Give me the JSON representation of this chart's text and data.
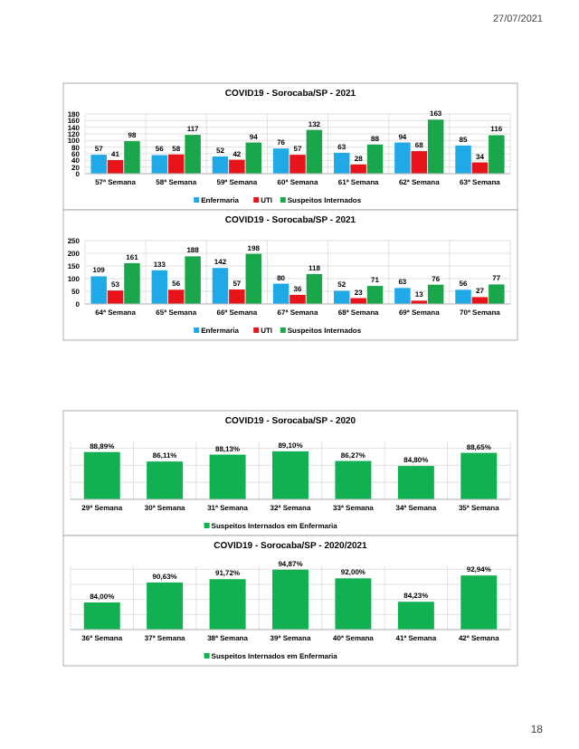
{
  "chart_data": [
    {
      "type": "bar",
      "title": "COVID19 - Sorocaba/SP - 2021",
      "categories": [
        "57ª Semana",
        "58ª Semana",
        "59ª Semana",
        "60ª Semana",
        "61ª Semana",
        "62ª Semana",
        "63ª Semana"
      ],
      "series": [
        {
          "name": "Enfermaria",
          "color": "#1fa9e6",
          "values": [
            57,
            56,
            52,
            76,
            63,
            94,
            85
          ]
        },
        {
          "name": "UTI",
          "color": "#e8141a",
          "values": [
            41,
            58,
            42,
            57,
            28,
            68,
            34
          ]
        },
        {
          "name": "Suspeitos Internados",
          "color": "#1aa64a",
          "values": [
            98,
            117,
            94,
            132,
            88,
            163,
            116
          ]
        }
      ],
      "ylim": [
        0,
        180
      ],
      "yticks": [
        0,
        20,
        40,
        60,
        80,
        100,
        120,
        140,
        160,
        180
      ],
      "grid": true,
      "legend": "bottom",
      "data_labels": true,
      "annotations": [
        "27/07/2021"
      ]
    },
    {
      "type": "bar",
      "title": "COVID19 - Sorocaba/SP - 2021",
      "categories": [
        "64ª Semana",
        "65ª Semana",
        "66ª Semana",
        "67ª Semana",
        "68ª Semana",
        "69ª Semana",
        "70ª Semana"
      ],
      "series": [
        {
          "name": "Enfermaria",
          "color": "#1fa9e6",
          "values": [
            109,
            133,
            142,
            80,
            52,
            63,
            56
          ]
        },
        {
          "name": "UTI",
          "color": "#e8141a",
          "values": [
            53,
            56,
            57,
            36,
            23,
            13,
            27
          ]
        },
        {
          "name": "Suspeitos Internados",
          "color": "#1aa64a",
          "values": [
            161,
            188,
            198,
            118,
            71,
            76,
            77
          ]
        }
      ],
      "ylim": [
        0,
        250
      ],
      "yticks": [
        0,
        50,
        100,
        150,
        200,
        250
      ],
      "grid": true,
      "legend": "bottom",
      "data_labels": true
    },
    {
      "type": "bar",
      "title": "COVID19 - Sorocaba/SP - 2020",
      "categories": [
        "29ª Semana",
        "30ª Semana",
        "31ª Semana",
        "32ª Semana",
        "33ª Semana",
        "34ª Semana",
        "35ª Semana"
      ],
      "series": [
        {
          "name": "Suspeitos Internados em Enfermaria",
          "color": "#11b050",
          "values": [
            88.89,
            86.11,
            88.13,
            89.1,
            86.27,
            84.8,
            88.65
          ],
          "value_labels": [
            "88,89%",
            "86,11%",
            "88,13%",
            "89,10%",
            "86,27%",
            "84,80%",
            "88,65%"
          ]
        }
      ],
      "ylim": [
        75,
        92
      ],
      "yticks": [
        {
          "value": 75,
          "label": null
        },
        {
          "value": 80,
          "label": null
        },
        {
          "value": 85,
          "label": null
        },
        {
          "value": 90,
          "label": null
        }
      ],
      "tick_labels": "x",
      "grid": true,
      "legend": "bottom"
    },
    {
      "type": "bar",
      "title": "COVID19 - Sorocaba/SP - 2020/2021",
      "categories": [
        "36ª Semana",
        "37ª Semana",
        "38ª Semana",
        "39ª Semana",
        "40ª Semana",
        "41ª Semana",
        "42ª Semana"
      ],
      "series": [
        {
          "name": "Suspeitos Internados em Enfermaria",
          "color": "#11b050",
          "values": [
            84,
            90.63,
            91.72,
            94.87,
            92,
            84.23,
            92.94
          ],
          "value_labels": [
            "84,00%",
            "90,63%",
            "91,72%",
            "94,87%",
            "92,00%",
            "84,23%",
            "92,94%"
          ]
        }
      ],
      "ylim": [
        75,
        96
      ],
      "yticks": [
        {
          "value": 75,
          "label": null
        },
        {
          "value": 80,
          "label": null
        },
        {
          "value": 85,
          "label": null
        },
        {
          "value": 90,
          "label": null
        },
        {
          "value": 95,
          "label": null
        }
      ],
      "tick_labels": "x",
      "grid": true,
      "legend": "bottom",
      "annotations": [
        "18"
      ]
    }
  ]
}
